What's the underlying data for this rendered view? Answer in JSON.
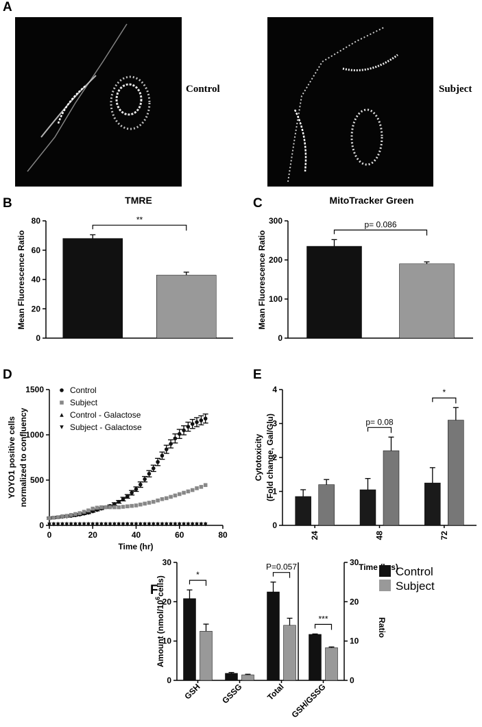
{
  "figure": {
    "panel_labels": [
      "A",
      "B",
      "C",
      "D",
      "E",
      "F"
    ],
    "image_labels": [
      "Control",
      "Subject"
    ]
  },
  "chart_data": [
    {
      "type": "bar",
      "title": "TMRE",
      "ylabel": [
        "Mean Fluorescence Ratio"
      ],
      "categories": [
        null,
        null
      ],
      "values": [
        68,
        43
      ],
      "errors": [
        2.5,
        2
      ],
      "colors": [
        "#111111",
        "#999999"
      ],
      "ylim": [
        0,
        80
      ],
      "yticks": [
        0,
        20,
        40,
        60,
        80
      ],
      "annotations": [
        "**"
      ]
    },
    {
      "type": "bar",
      "title": "MitoTracker Green",
      "ylabel": [
        "Mean Fluorescence Ratio"
      ],
      "categories": [
        null,
        null
      ],
      "values": [
        235,
        190
      ],
      "errors": [
        17,
        5
      ],
      "colors": [
        "#111111",
        "#999999"
      ],
      "ylim": [
        0,
        300
      ],
      "yticks": [
        0,
        100,
        200,
        300
      ],
      "annotations": [
        "p= 0.086"
      ]
    },
    {
      "type": "scatter",
      "xlabel": "Time (hr)",
      "ylabel": [
        "YOYO1 positive cells",
        "normalized to confluency"
      ],
      "x": [
        0,
        2,
        4,
        6,
        8,
        10,
        12,
        14,
        16,
        18,
        20,
        22,
        24,
        26,
        28,
        30,
        32,
        34,
        36,
        38,
        40,
        42,
        44,
        46,
        48,
        50,
        52,
        54,
        56,
        58,
        60,
        62,
        64,
        66,
        68,
        70,
        72
      ],
      "series": [
        {
          "name": "Control",
          "color": "#111111",
          "marker": "circle",
          "values": [
            80,
            85,
            90,
            95,
            100,
            105,
            112,
            120,
            130,
            140,
            155,
            170,
            185,
            200,
            215,
            235,
            260,
            290,
            320,
            360,
            400,
            450,
            510,
            570,
            630,
            700,
            770,
            840,
            900,
            960,
            1010,
            1050,
            1090,
            1120,
            1140,
            1160,
            1180
          ],
          "errors": [
            10,
            10,
            10,
            10,
            10,
            10,
            10,
            10,
            10,
            10,
            10,
            10,
            10,
            10,
            10,
            15,
            15,
            20,
            20,
            25,
            25,
            30,
            30,
            35,
            35,
            40,
            40,
            45,
            45,
            50,
            50,
            50,
            50,
            50,
            50,
            50,
            50
          ]
        },
        {
          "name": "Subject",
          "color": "#888888",
          "marker": "square",
          "values": [
            80,
            85,
            90,
            100,
            105,
            115,
            125,
            135,
            150,
            165,
            185,
            195,
            200,
            200,
            200,
            200,
            200,
            205,
            210,
            215,
            220,
            230,
            240,
            250,
            260,
            275,
            290,
            300,
            315,
            330,
            345,
            360,
            375,
            390,
            410,
            425,
            445
          ]
        },
        {
          "name": "Control - Galactose",
          "color": "#111111",
          "marker": "triangle",
          "values": [
            20,
            20,
            20,
            20,
            20,
            20,
            20,
            20,
            20,
            20,
            20,
            20,
            20,
            20,
            20,
            20,
            20,
            20,
            20,
            20,
            20,
            20,
            20,
            20,
            20,
            20,
            20,
            20,
            20,
            20,
            20,
            20,
            20,
            20,
            20,
            20,
            20
          ]
        },
        {
          "name": "Subject - Galactose",
          "color": "#111111",
          "marker": "triangle-down",
          "values": [
            10,
            10,
            10,
            10,
            10,
            10,
            10,
            10,
            10,
            10,
            10,
            10,
            10,
            10,
            10,
            10,
            10,
            10,
            10,
            10,
            10,
            10,
            10,
            10,
            10,
            10,
            10,
            10,
            10,
            10,
            10,
            10,
            10,
            10,
            10,
            10,
            10
          ]
        }
      ],
      "xlim": [
        0,
        80
      ],
      "xticks": [
        0,
        20,
        40,
        60,
        80
      ],
      "ylim": [
        0,
        1500
      ],
      "yticks": [
        0,
        500,
        1000,
        1500
      ]
    },
    {
      "type": "bar",
      "xlabel": "Time (hrs)",
      "ylabel": [
        "Cytotoxicity",
        "(Fold change, Gal/Glu)"
      ],
      "categories": [
        "24",
        "48",
        "72"
      ],
      "series": [
        {
          "color": "#1a1a1a",
          "values": [
            0.85,
            1.05,
            1.25
          ],
          "errors": [
            0.2,
            0.33,
            0.45
          ]
        },
        {
          "color": "#777777",
          "values": [
            1.2,
            2.2,
            3.1
          ],
          "errors": [
            0.15,
            0.4,
            0.37
          ]
        }
      ],
      "ylim": [
        0,
        4
      ],
      "yticks": [
        0,
        1,
        2,
        3,
        4
      ],
      "annotations": [
        "p= 0.08",
        "*"
      ]
    },
    {
      "type": "bar",
      "ylabel": [
        "Amount (nmol/10",
        "6",
        "cells)"
      ],
      "y2label": "Ratio",
      "categories": [
        "GSH",
        "GSSG",
        "Total",
        "GSH/GSSG"
      ],
      "series": [
        {
          "name": "Control",
          "color": "#111111",
          "values": [
            20.8,
            1.8,
            22.5,
            null
          ],
          "errors": [
            2.2,
            0.2,
            2.5,
            null
          ]
        },
        {
          "name": "Subject",
          "color": "#999999",
          "values": [
            12.5,
            1.4,
            14,
            null
          ],
          "errors": [
            1.8,
            0.15,
            1.8,
            null
          ]
        }
      ],
      "y2_series": [
        {
          "color": "#111111",
          "axis": "y2",
          "values": [
            null,
            null,
            null,
            11.7
          ],
          "errors": [
            null,
            null,
            null,
            0.1
          ]
        },
        {
          "color": "#999999",
          "axis": "y2",
          "values": [
            null,
            null,
            null,
            8.3
          ],
          "errors": [
            null,
            null,
            null,
            0.2
          ]
        }
      ],
      "ylim": [
        0,
        30
      ],
      "yticks": [
        0,
        10,
        20,
        30
      ],
      "y2lim": [
        0,
        30
      ],
      "y2ticks": [
        0,
        10,
        20,
        30
      ],
      "annotations": [
        "*",
        "P=0.057",
        "***"
      ]
    }
  ]
}
